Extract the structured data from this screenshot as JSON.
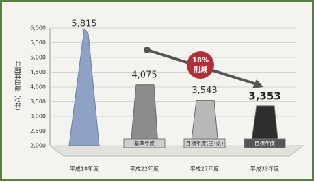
{
  "chart_data": {
    "type": "bar",
    "ylabel": "年間排出量（t/年）",
    "categories": [
      "平成18年度",
      "平成22年度",
      "平成27年度",
      "平成33年度"
    ],
    "values": [
      5815,
      4075,
      3543,
      3353
    ],
    "value_labels": [
      "5,815",
      "4,075",
      "3,543",
      "3,353"
    ],
    "colors": [
      "#8fa2c6",
      "#8c8c8c",
      "#b8b8b8",
      "#2e2e2e"
    ],
    "annotations": [
      "基準年度",
      "目標年度(国･県)",
      "目標年度"
    ],
    "callout": [
      "18%",
      "削減"
    ],
    "ylim": [
      2000,
      6000
    ],
    "yticks": [
      {
        "value": 2000,
        "label": "2,000"
      },
      {
        "value": 2500,
        "label": "2,500"
      },
      {
        "value": 3000,
        "label": "3,000"
      },
      {
        "value": 3500,
        "label": "3,500"
      },
      {
        "value": 4000,
        "label": "4,000"
      },
      {
        "value": 4500,
        "label": "4,500"
      },
      {
        "value": 5000,
        "label": "5,000"
      },
      {
        "value": 5500,
        "label": "5,500"
      },
      {
        "value": 6000,
        "label": "6,000"
      }
    ],
    "grid": true
  }
}
